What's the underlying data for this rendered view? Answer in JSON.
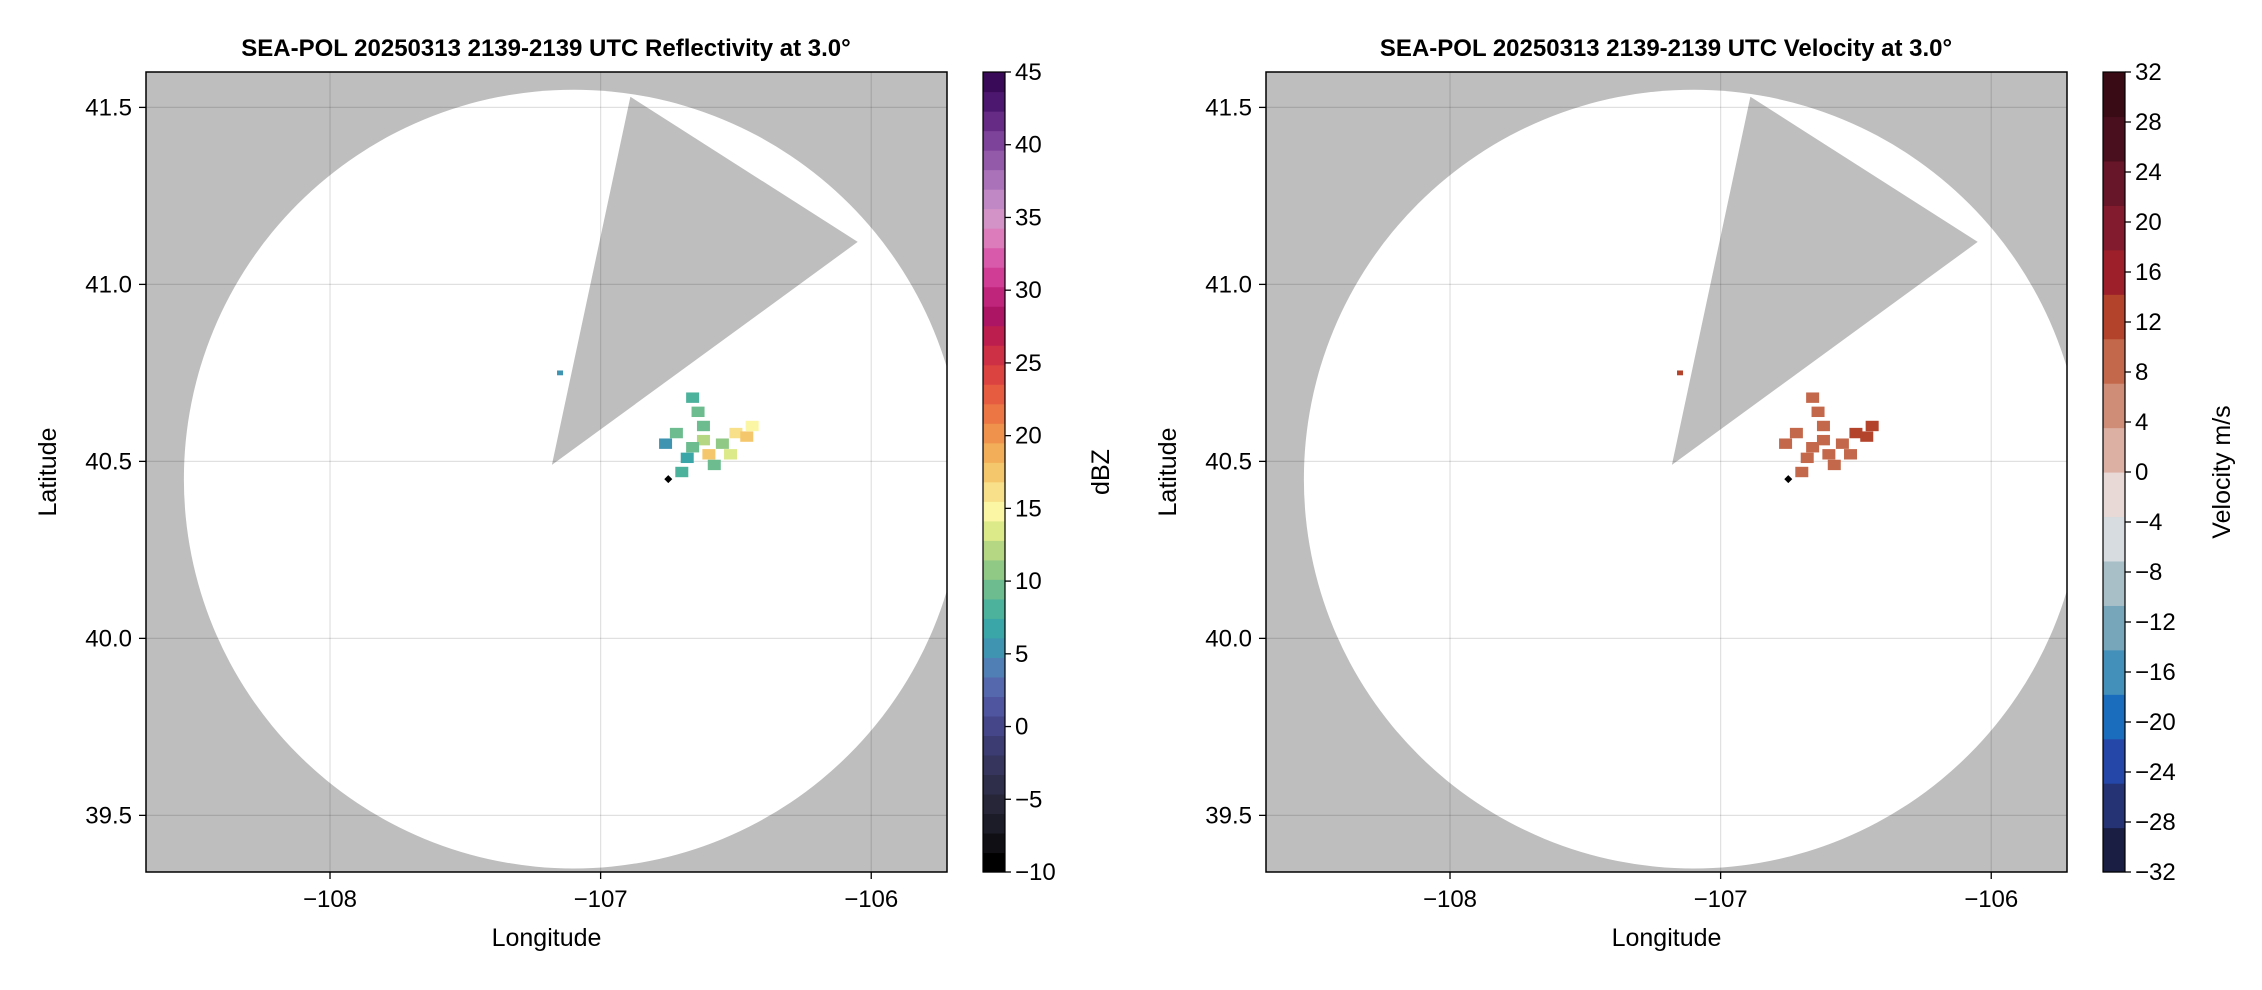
{
  "chart_data": [
    {
      "type": "heatmap",
      "title": "SEA-POL 20250313 2139-2139 UTC Reflectivity at 3.0°",
      "xlabel": "Longitude",
      "ylabel": "Latitude",
      "xlim": [
        -108.68,
        -105.72
      ],
      "ylim": [
        39.34,
        41.6
      ],
      "xticks": [
        -108,
        -107,
        -106
      ],
      "xtick_labels": [
        "−108",
        "−107",
        "−106"
      ],
      "yticks": [
        39.5,
        40.0,
        40.5,
        41.0,
        41.5
      ],
      "ytick_labels": [
        "39.5",
        "40.0",
        "40.5",
        "41.0",
        "41.5"
      ],
      "grid": true,
      "background_color": "#bebebe",
      "radar_site": {
        "lon": -106.75,
        "lat": 40.45
      },
      "coverage": {
        "center_lon": -107.1,
        "center_lat": 40.45,
        "radius_lon": 1.44,
        "radius_lat": 1.1,
        "blocked_sector_points": [
          [
            -107.18,
            40.49
          ],
          [
            -106.89,
            41.53
          ],
          [
            -106.05,
            41.12
          ]
        ]
      },
      "echoes": [
        {
          "lon": -107.15,
          "lat": 40.75,
          "value": 5
        },
        {
          "lon": -106.66,
          "lat": 40.68,
          "value": 8
        },
        {
          "lon": -106.64,
          "lat": 40.64,
          "value": 10
        },
        {
          "lon": -106.62,
          "lat": 40.56,
          "value": 12
        },
        {
          "lon": -106.6,
          "lat": 40.52,
          "value": 18
        },
        {
          "lon": -106.58,
          "lat": 40.49,
          "value": 10
        },
        {
          "lon": -106.66,
          "lat": 40.54,
          "value": 9
        },
        {
          "lon": -106.68,
          "lat": 40.51,
          "value": 7
        },
        {
          "lon": -106.72,
          "lat": 40.58,
          "value": 10
        },
        {
          "lon": -106.7,
          "lat": 40.47,
          "value": 8
        },
        {
          "lon": -106.52,
          "lat": 40.52,
          "value": 14
        },
        {
          "lon": -106.5,
          "lat": 40.58,
          "value": 16
        },
        {
          "lon": -106.46,
          "lat": 40.57,
          "value": 18
        },
        {
          "lon": -106.44,
          "lat": 40.6,
          "value": 15
        },
        {
          "lon": -106.55,
          "lat": 40.55,
          "value": 11
        },
        {
          "lon": -106.62,
          "lat": 40.6,
          "value": 9
        },
        {
          "lon": -106.76,
          "lat": 40.55,
          "value": 6
        }
      ],
      "colorbar": {
        "label": "dBZ",
        "min": -10,
        "max": 45,
        "ticks": [
          -10,
          -5,
          0,
          5,
          10,
          15,
          20,
          25,
          30,
          35,
          40,
          45
        ],
        "tick_labels": [
          "−10",
          "−5",
          "0",
          "5",
          "10",
          "15",
          "20",
          "25",
          "30",
          "35",
          "40",
          "45"
        ],
        "colors": [
          "#000000",
          "#0f0f14",
          "#1c1c28",
          "#262638",
          "#2e2e4a",
          "#35355e",
          "#3c3c72",
          "#45458a",
          "#4f559e",
          "#5668ad",
          "#4f7fb5",
          "#3f94b2",
          "#3ba6a8",
          "#4cb29b",
          "#6cbc8f",
          "#90c885",
          "#b5d682",
          "#dcea8a",
          "#fbf6a3",
          "#f8e08a",
          "#f5c76c",
          "#f2ae58",
          "#ef924c",
          "#ec7745",
          "#e65c40",
          "#db4340",
          "#cd2f44",
          "#bc1f4d",
          "#ab1563",
          "#c0257c",
          "#d03d94",
          "#d85aaa",
          "#dd7cbb",
          "#d493c6",
          "#c088c4",
          "#aa72b8",
          "#945aaa",
          "#7d4299",
          "#652b85",
          "#4c176e",
          "#380a57"
        ]
      }
    },
    {
      "type": "heatmap",
      "title": "SEA-POL 20250313 2139-2139 UTC Velocity at 3.0°",
      "xlabel": "Longitude",
      "ylabel": "Latitude",
      "xlim": [
        -108.68,
        -105.72
      ],
      "ylim": [
        39.34,
        41.6
      ],
      "xticks": [
        -108,
        -107,
        -106
      ],
      "xtick_labels": [
        "−108",
        "−107",
        "−106"
      ],
      "yticks": [
        39.5,
        40.0,
        40.5,
        41.0,
        41.5
      ],
      "ytick_labels": [
        "39.5",
        "40.0",
        "40.5",
        "41.0",
        "41.5"
      ],
      "grid": true,
      "background_color": "#bebebe",
      "radar_site": {
        "lon": -106.75,
        "lat": 40.45
      },
      "coverage": {
        "center_lon": -107.1,
        "center_lat": 40.45,
        "radius_lon": 1.44,
        "radius_lat": 1.1,
        "blocked_sector_points": [
          [
            -107.18,
            40.49
          ],
          [
            -106.89,
            41.53
          ],
          [
            -106.05,
            41.12
          ]
        ]
      },
      "echoes": [
        {
          "lon": -107.15,
          "lat": 40.75,
          "value": 12
        },
        {
          "lon": -106.66,
          "lat": 40.68,
          "value": 10
        },
        {
          "lon": -106.64,
          "lat": 40.64,
          "value": 10
        },
        {
          "lon": -106.62,
          "lat": 40.56,
          "value": 9
        },
        {
          "lon": -106.6,
          "lat": 40.52,
          "value": 9
        },
        {
          "lon": -106.58,
          "lat": 40.49,
          "value": 10
        },
        {
          "lon": -106.66,
          "lat": 40.54,
          "value": 9
        },
        {
          "lon": -106.68,
          "lat": 40.51,
          "value": 9
        },
        {
          "lon": -106.72,
          "lat": 40.58,
          "value": 10
        },
        {
          "lon": -106.7,
          "lat": 40.47,
          "value": 9
        },
        {
          "lon": -106.52,
          "lat": 40.52,
          "value": 10
        },
        {
          "lon": -106.5,
          "lat": 40.58,
          "value": 13
        },
        {
          "lon": -106.46,
          "lat": 40.57,
          "value": 13
        },
        {
          "lon": -106.44,
          "lat": 40.6,
          "value": 12
        },
        {
          "lon": -106.55,
          "lat": 40.55,
          "value": 10
        },
        {
          "lon": -106.62,
          "lat": 40.6,
          "value": 9
        },
        {
          "lon": -106.76,
          "lat": 40.55,
          "value": 9
        }
      ],
      "colorbar": {
        "label": "Velocity m/s",
        "min": -32,
        "max": 32,
        "ticks": [
          -32,
          -28,
          -24,
          -20,
          -16,
          -12,
          -8,
          -4,
          0,
          4,
          8,
          12,
          16,
          20,
          24,
          28,
          32
        ],
        "tick_labels": [
          "−32",
          "−28",
          "−24",
          "−20",
          "−16",
          "−12",
          "−8",
          "−4",
          "0",
          "4",
          "8",
          "12",
          "16",
          "20",
          "24",
          "28",
          "32"
        ],
        "colors": [
          "#1a1e42",
          "#253274",
          "#2548a8",
          "#1a6dbd",
          "#4390bb",
          "#77a6bb",
          "#a9bfc8",
          "#d6dcdf",
          "#e8d9d6",
          "#dcb1a4",
          "#cf8c76",
          "#c4684b",
          "#b3432b",
          "#9c1f2a",
          "#821b2d",
          "#671528",
          "#4a0f1e",
          "#380b15"
        ]
      }
    }
  ]
}
